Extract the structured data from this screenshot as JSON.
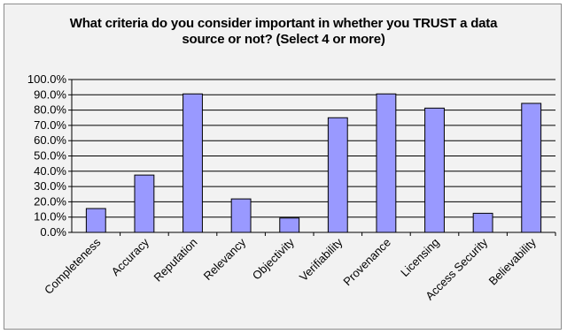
{
  "chart_data": {
    "type": "bar",
    "title_lines": [
      "What criteria do you consider important in whether you TRUST a data",
      "source or not? (Select 4 or more)"
    ],
    "categories": [
      "Completeness",
      "Accuracy",
      "Reputation",
      "Relevancy",
      "Objectivity",
      "Verifiability",
      "Provenance",
      "Licensing",
      "Access Security",
      "Believability"
    ],
    "values": [
      15.6,
      37.5,
      90.6,
      21.9,
      9.4,
      75.0,
      90.6,
      81.3,
      12.5,
      84.4
    ],
    "ylim": [
      0,
      100
    ],
    "y_ticks": [
      "0.0%",
      "10.0%",
      "20.0%",
      "30.0%",
      "40.0%",
      "50.0%",
      "60.0%",
      "70.0%",
      "80.0%",
      "90.0%",
      "100.0%"
    ],
    "grid": true,
    "legend": "none",
    "bar_color": "#9999ff",
    "bar_outline": "#000000",
    "background": "#f2f2f2"
  }
}
